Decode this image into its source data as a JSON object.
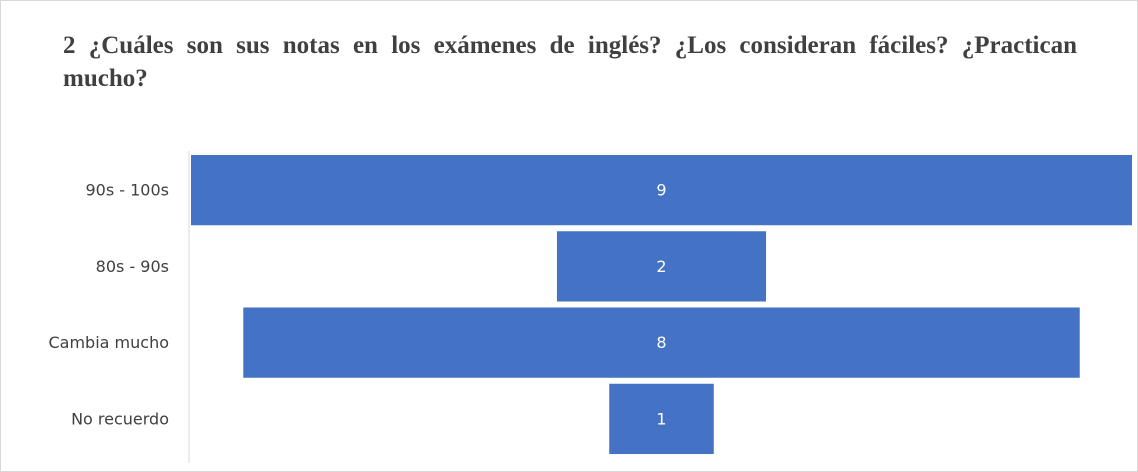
{
  "chart_data": {
    "type": "funnel",
    "title": "2 ¿Cuáles son sus notas en los exámenes de inglés? ¿Los consideran fáciles? ¿Practican mucho?",
    "categories": [
      "90s - 100s",
      "80s - 90s",
      "Cambia mucho",
      "No recuerdo"
    ],
    "values": [
      9,
      2,
      8,
      1
    ],
    "color": "#4472c4"
  }
}
